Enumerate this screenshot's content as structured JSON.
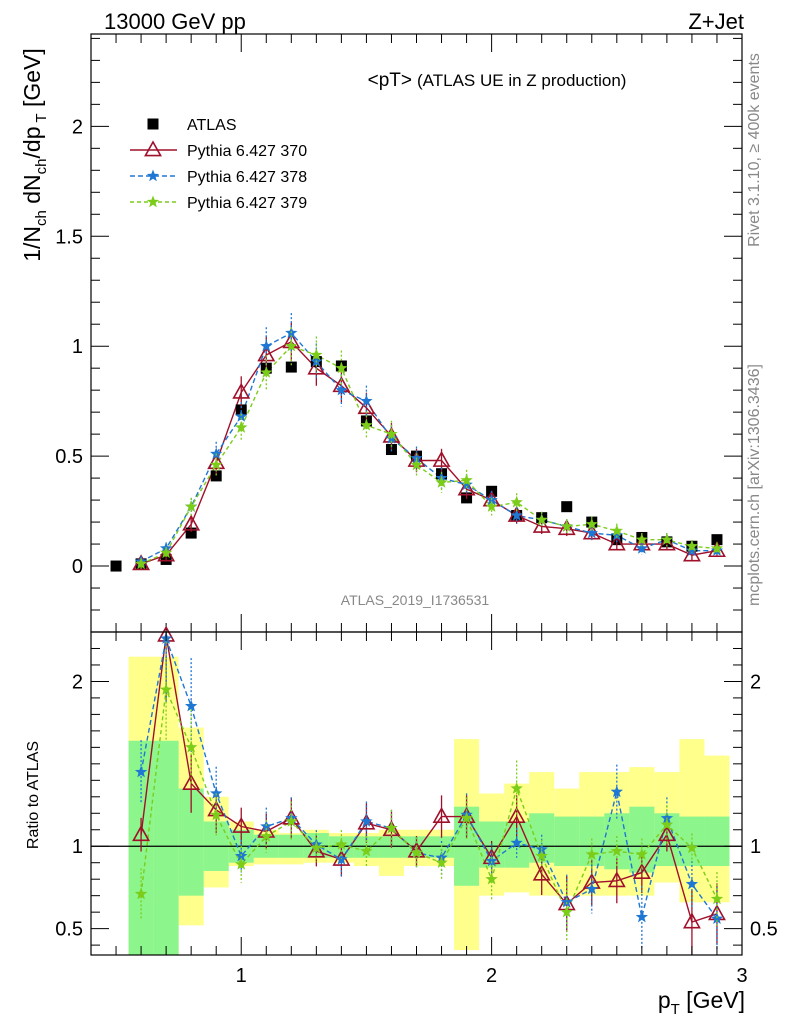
{
  "header": {
    "left": "13000 GeV pp",
    "right": "Z+Jet"
  },
  "side": {
    "rivet": "Rivet 3.1.10, ≥ 400k events",
    "mcplots": "mcplots.cern.ch [arXiv:1306.3436]"
  },
  "chart_data": [
    {
      "type": "scatter",
      "title": "<pT>",
      "subtitle": "(ATLAS UE in Z production)",
      "watermark": "ATLAS_2019_I1736531",
      "ylabel": "1/N_ch dN_ch/dp_T [GeV]",
      "xlabel": "p_T [GeV]",
      "xlim": [
        0.4,
        3.0
      ],
      "ylim": [
        -0.3,
        2.42
      ],
      "yticks": [
        "0",
        "0.5",
        "1",
        "1.5",
        "2"
      ],
      "legend_position": "top-left",
      "series": [
        {
          "name": "ATLAS",
          "color": "#000000",
          "marker": "square",
          "x": [
            0.5,
            0.6,
            0.7,
            0.8,
            0.9,
            1.0,
            1.1,
            1.2,
            1.3,
            1.4,
            1.5,
            1.6,
            1.7,
            1.8,
            1.9,
            2.0,
            2.1,
            2.2,
            2.3,
            2.4,
            2.5,
            2.6,
            2.7,
            2.8,
            2.9
          ],
          "values": [
            0.0,
            0.01,
            0.03,
            0.15,
            0.41,
            0.71,
            0.9,
            0.905,
            0.93,
            0.91,
            0.66,
            0.53,
            0.5,
            0.42,
            0.31,
            0.34,
            0.23,
            0.22,
            0.27,
            0.2,
            0.12,
            0.13,
            0.11,
            0.09,
            0.12
          ]
        },
        {
          "name": "Pythia 6.427 370",
          "color": "#a0102a",
          "marker": "open-triangle",
          "x": [
            0.6,
            0.7,
            0.8,
            0.9,
            1.0,
            1.1,
            1.2,
            1.3,
            1.4,
            1.5,
            1.6,
            1.7,
            1.8,
            1.9,
            2.0,
            2.1,
            2.2,
            2.3,
            2.4,
            2.5,
            2.6,
            2.7,
            2.8,
            2.9
          ],
          "values": [
            0.01,
            0.05,
            0.19,
            0.47,
            0.79,
            0.96,
            1.02,
            0.9,
            0.82,
            0.72,
            0.59,
            0.48,
            0.48,
            0.35,
            0.3,
            0.23,
            0.18,
            0.17,
            0.15,
            0.1,
            0.1,
            0.1,
            0.05,
            0.07
          ]
        },
        {
          "name": "Pythia 6.427 378",
          "color": "#1f77d4",
          "marker": "star",
          "x": [
            0.6,
            0.7,
            0.8,
            0.9,
            1.0,
            1.1,
            1.2,
            1.3,
            1.4,
            1.5,
            1.6,
            1.7,
            1.8,
            1.9,
            2.0,
            2.1,
            2.2,
            2.3,
            2.4,
            2.5,
            2.6,
            2.7,
            2.8,
            2.9
          ],
          "values": [
            0.02,
            0.08,
            0.27,
            0.51,
            0.68,
            1.0,
            1.06,
            0.93,
            0.8,
            0.75,
            0.58,
            0.49,
            0.4,
            0.37,
            0.3,
            0.23,
            0.21,
            0.18,
            0.15,
            0.14,
            0.08,
            0.12,
            0.07,
            0.07
          ]
        },
        {
          "name": "Pythia 6.427 379",
          "color": "#7ccc1a",
          "marker": "star",
          "x": [
            0.6,
            0.7,
            0.8,
            0.9,
            1.0,
            1.1,
            1.2,
            1.3,
            1.4,
            1.5,
            1.6,
            1.7,
            1.8,
            1.9,
            2.0,
            2.1,
            2.2,
            2.3,
            2.4,
            2.5,
            2.6,
            2.7,
            2.8,
            2.9
          ],
          "values": [
            0.01,
            0.06,
            0.27,
            0.46,
            0.63,
            0.88,
            1.0,
            0.96,
            0.9,
            0.64,
            0.6,
            0.46,
            0.38,
            0.39,
            0.27,
            0.29,
            0.21,
            0.18,
            0.19,
            0.16,
            0.12,
            0.12,
            0.09,
            0.08
          ]
        }
      ]
    },
    {
      "type": "scatter",
      "ylabel": "Ratio to ATLAS",
      "xlabel": "p_T [GeV]",
      "xlim": [
        0.4,
        3.0
      ],
      "ylim": [
        0.34,
        2.3
      ],
      "xticks": [
        "1",
        "2",
        "3"
      ],
      "yticks": [
        "0.5",
        "1",
        "2"
      ],
      "reference": 1,
      "bands": {
        "x_edges": [
          0.55,
          0.65,
          0.75,
          0.85,
          0.95,
          1.05,
          1.15,
          1.25,
          1.35,
          1.45,
          1.55,
          1.65,
          1.75,
          1.85,
          1.95,
          2.05,
          2.15,
          2.25,
          2.35,
          2.45,
          2.55,
          2.65,
          2.75,
          2.85,
          2.95
        ],
        "stat_low": [
          0.3,
          0.3,
          0.7,
          0.85,
          0.9,
          0.93,
          0.93,
          0.93,
          0.93,
          0.93,
          0.93,
          0.93,
          0.93,
          0.76,
          0.87,
          0.87,
          0.9,
          0.88,
          0.88,
          0.86,
          0.84,
          0.88,
          0.88,
          0.88
        ],
        "stat_high": [
          1.64,
          1.64,
          1.35,
          1.15,
          1.1,
          1.07,
          1.07,
          1.08,
          1.06,
          1.06,
          1.06,
          1.06,
          1.06,
          1.24,
          1.15,
          1.15,
          1.2,
          1.18,
          1.18,
          1.2,
          1.24,
          1.2,
          1.18,
          1.18
        ],
        "syst_low": [
          0.3,
          0.3,
          0.52,
          0.75,
          0.88,
          0.89,
          0.89,
          0.9,
          0.9,
          0.88,
          0.82,
          0.88,
          0.88,
          0.37,
          0.7,
          0.72,
          0.7,
          0.7,
          0.7,
          0.7,
          0.7,
          0.78,
          0.66,
          0.66
        ],
        "syst_high": [
          2.15,
          2.15,
          1.72,
          1.3,
          1.15,
          1.1,
          1.08,
          1.1,
          1.08,
          1.08,
          1.1,
          1.1,
          1.1,
          1.65,
          1.32,
          1.38,
          1.45,
          1.35,
          1.45,
          1.45,
          1.48,
          1.45,
          1.65,
          1.55
        ]
      },
      "series": [
        {
          "name": "Pythia 6.427 370",
          "color": "#a0102a",
          "marker": "open-triangle",
          "x": [
            0.6,
            0.7,
            0.8,
            0.9,
            1.0,
            1.1,
            1.2,
            1.3,
            1.4,
            1.5,
            1.6,
            1.7,
            1.8,
            1.9,
            2.0,
            2.1,
            2.2,
            2.3,
            2.4,
            2.5,
            2.6,
            2.7,
            2.8,
            2.9
          ],
          "values": [
            1.07,
            2.28,
            1.38,
            1.22,
            1.12,
            1.09,
            1.17,
            0.97,
            0.92,
            1.14,
            1.1,
            0.97,
            1.18,
            1.18,
            0.93,
            1.18,
            0.83,
            0.65,
            0.78,
            0.79,
            0.84,
            1.07,
            0.54,
            0.59
          ]
        },
        {
          "name": "Pythia 6.427 378",
          "color": "#1f77d4",
          "marker": "star",
          "x": [
            0.6,
            0.7,
            0.8,
            0.9,
            1.0,
            1.1,
            1.2,
            1.3,
            1.4,
            1.5,
            1.6,
            1.7,
            1.8,
            1.9,
            2.0,
            2.1,
            2.2,
            2.3,
            2.4,
            2.5,
            2.6,
            2.7,
            2.8,
            2.9
          ],
          "values": [
            1.45,
            2.26,
            1.85,
            1.32,
            0.94,
            1.12,
            1.17,
            1.01,
            0.92,
            1.15,
            1.11,
            0.96,
            0.93,
            1.19,
            0.91,
            1.02,
            0.98,
            0.66,
            0.74,
            1.33,
            0.57,
            1.17,
            0.77,
            0.56
          ]
        },
        {
          "name": "Pythia 6.427 379",
          "color": "#7ccc1a",
          "marker": "star",
          "x": [
            0.6,
            0.7,
            0.8,
            0.9,
            1.0,
            1.1,
            1.2,
            1.3,
            1.4,
            1.5,
            1.6,
            1.7,
            1.8,
            1.9,
            2.0,
            2.1,
            2.2,
            2.3,
            2.4,
            2.5,
            2.6,
            2.7,
            2.8,
            2.9
          ],
          "values": [
            0.71,
            1.95,
            1.6,
            1.19,
            0.89,
            1.06,
            1.15,
            0.99,
            1.01,
            0.97,
            1.11,
            0.96,
            0.9,
            1.17,
            0.8,
            1.35,
            0.94,
            0.6,
            0.95,
            0.97,
            0.95,
            1.13,
            0.99,
            0.68
          ]
        }
      ]
    }
  ]
}
